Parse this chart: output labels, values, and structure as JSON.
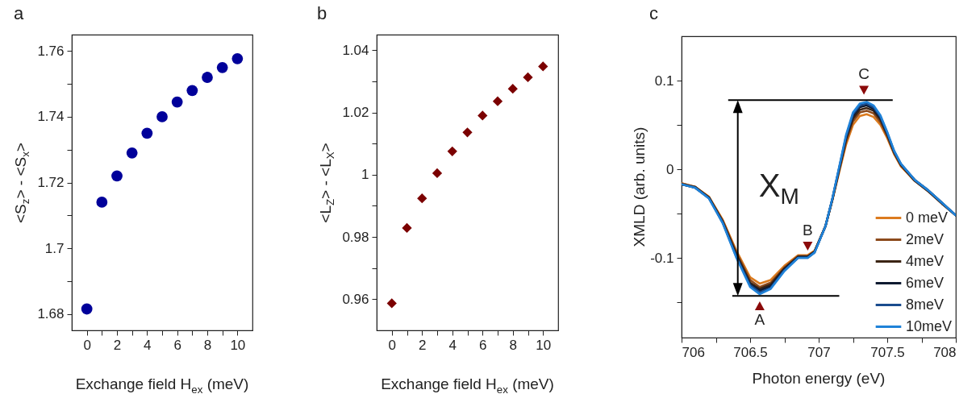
{
  "chart_data": [
    {
      "type": "scatter",
      "title": "a",
      "xlabel": "Exchange field H$_{ex}$ (meV)",
      "ylabel": "<S$_{z}$> - <S$_{x}$>",
      "x": [
        0,
        1,
        2,
        3,
        4,
        5,
        6,
        7,
        8,
        9,
        10
      ],
      "values": [
        1.6815,
        1.714,
        1.722,
        1.729,
        1.735,
        1.74,
        1.7445,
        1.748,
        1.752,
        1.755,
        1.7577
      ],
      "color": "#00009a",
      "marker": "circle",
      "xlim": [
        -1,
        11
      ],
      "ylim": [
        1.675,
        1.765
      ],
      "xticks": [
        0,
        {
          "value": 1,
          "label": null
        },
        2,
        {
          "value": 3,
          "label": null
        },
        4,
        {
          "value": 5,
          "label": null
        },
        6,
        {
          "value": 7,
          "label": null
        },
        8,
        {
          "value": 9,
          "label": null
        },
        10
      ],
      "yticks": [
        1.68,
        {
          "value": 1.69,
          "label": null
        },
        1.7,
        {
          "value": 1.71,
          "label": null
        },
        1.72,
        {
          "value": 1.73,
          "label": null
        },
        1.74,
        {
          "value": 1.75,
          "label": null
        },
        1.76
      ]
    },
    {
      "type": "scatter",
      "title": "b",
      "xlabel": "Exchange field H$_{ex}$ (meV)",
      "ylabel": "<L$_{Z}$> - <L$_{X}$>",
      "x": [
        0,
        1,
        2,
        3,
        4,
        5,
        6,
        7,
        8,
        9,
        10
      ],
      "values": [
        0.9587,
        0.9829,
        0.9924,
        1.0005,
        1.0075,
        1.0136,
        1.019,
        1.0236,
        1.0276,
        1.0313,
        1.0348
      ],
      "color": "#7b0000",
      "marker": "diamond",
      "xlim": [
        -1,
        11
      ],
      "ylim": [
        0.95,
        1.045
      ],
      "xticks": [
        0,
        {
          "value": 1,
          "label": null
        },
        2,
        {
          "value": 3,
          "label": null
        },
        4,
        {
          "value": 5,
          "label": null
        },
        6,
        {
          "value": 7,
          "label": null
        },
        8,
        {
          "value": 9,
          "label": null
        },
        10
      ],
      "yticks": [
        0.96,
        {
          "value": 0.97,
          "label": null
        },
        0.98,
        {
          "value": 0.99,
          "label": null
        },
        1,
        {
          "value": 1.01,
          "label": null
        },
        1.02,
        {
          "value": 1.03,
          "label": null
        },
        1.04
      ]
    },
    {
      "type": "line",
      "title": "c",
      "xlabel": "Photon energy (eV)",
      "ylabel": "XMLD (arb. units)",
      "legend": "bottom right",
      "line_style": "solid",
      "x": [
        706,
        706.1,
        706.2,
        706.3,
        706.4,
        706.5,
        706.57,
        706.65,
        706.75,
        706.85,
        706.92,
        706.97,
        707.05,
        707.1,
        707.15,
        707.2,
        707.25,
        707.3,
        707.35,
        707.4,
        707.45,
        707.5,
        707.55,
        707.6,
        707.7,
        707.8,
        707.9,
        708
      ],
      "series": [
        {
          "name": "0 meV",
          "color": "#dc7b1e",
          "values": [
            -0.016,
            -0.02,
            -0.031,
            -0.057,
            -0.092,
            -0.122,
            -0.129,
            -0.125,
            -0.109,
            -0.097,
            -0.097,
            -0.092,
            -0.064,
            -0.035,
            -0.003,
            0.028,
            0.05,
            0.06,
            0.062,
            0.059,
            0.05,
            0.035,
            0.017,
            0.003,
            -0.013,
            -0.025,
            null,
            null
          ]
        },
        {
          "name": "2meV",
          "color": "#8c4a1c",
          "values": [
            -0.016,
            -0.02,
            -0.032,
            -0.058,
            -0.094,
            -0.125,
            -0.133,
            -0.128,
            -0.111,
            -0.098,
            -0.098,
            -0.093,
            -0.064,
            -0.034,
            -0.001,
            0.031,
            0.054,
            0.064,
            0.066,
            0.063,
            0.053,
            0.037,
            0.018,
            0.004,
            -0.013,
            -0.025,
            -0.039,
            -0.052
          ]
        },
        {
          "name": "4meV",
          "color": "#3b2414",
          "values": [
            -0.017,
            -0.02,
            -0.032,
            -0.059,
            -0.096,
            -0.128,
            -0.135,
            -0.13,
            -0.112,
            -0.099,
            -0.099,
            -0.093,
            -0.064,
            -0.034,
            0.0,
            0.034,
            0.057,
            0.067,
            0.069,
            0.066,
            0.056,
            0.039,
            0.019,
            0.005,
            -0.013,
            -0.025,
            -0.039,
            -0.052
          ]
        },
        {
          "name": "6meV",
          "color": "#0e1a30",
          "values": [
            -0.017,
            -0.021,
            -0.032,
            -0.06,
            -0.098,
            -0.13,
            -0.137,
            -0.132,
            -0.113,
            -0.099,
            -0.099,
            -0.093,
            -0.064,
            -0.034,
            0.001,
            0.036,
            0.06,
            0.07,
            0.072,
            0.068,
            0.058,
            0.04,
            0.02,
            0.005,
            -0.012,
            -0.024,
            -0.038,
            -0.052
          ]
        },
        {
          "name": "8meV",
          "color": "#1a4c8e",
          "values": [
            -0.017,
            -0.021,
            -0.033,
            -0.06,
            -0.099,
            -0.131,
            -0.139,
            -0.134,
            -0.114,
            -0.1,
            -0.1,
            -0.094,
            -0.064,
            -0.033,
            0.002,
            0.037,
            0.062,
            0.072,
            0.074,
            0.07,
            0.059,
            0.041,
            0.02,
            0.006,
            -0.012,
            -0.024,
            -0.038,
            -0.052
          ]
        },
        {
          "name": "10meV",
          "color": "#1f82d8",
          "values": [
            -0.017,
            -0.021,
            -0.033,
            -0.061,
            -0.1,
            -0.133,
            -0.141,
            -0.135,
            -0.115,
            -0.1,
            -0.1,
            -0.094,
            -0.064,
            -0.033,
            0.003,
            0.039,
            0.064,
            0.074,
            0.076,
            0.072,
            0.061,
            0.042,
            0.021,
            0.006,
            -0.012,
            -0.024,
            -0.038,
            -0.052
          ]
        }
      ],
      "xlim": [
        706,
        708
      ],
      "ylim": [
        -0.19,
        0.15
      ],
      "xticks": [
        706,
        {
          "value": 706.25,
          "label": null
        },
        706.5,
        {
          "value": 706.75,
          "label": null
        },
        707,
        {
          "value": 707.25,
          "label": null
        },
        707.5,
        {
          "value": 707.75,
          "label": null
        },
        708
      ],
      "yticks": [
        {
          "value": -0.15,
          "label": null
        },
        -0.1,
        {
          "value": -0.05,
          "label": null
        },
        0,
        {
          "value": 0.05,
          "label": null
        },
        0.1
      ],
      "ref_lines": [
        {
          "axis": "y",
          "value": 0.078,
          "color": "#000000"
        },
        {
          "axis": "y",
          "value": -0.143,
          "color": "#000000"
        }
      ],
      "annotations": [
        "X$_{M}$",
        {
          "text": "A",
          "x": 706.57,
          "y": -0.141
        },
        {
          "text": "B",
          "x": 706.92,
          "y": -0.1
        },
        {
          "text": "C",
          "x": 707.33,
          "y": 0.076
        }
      ]
    }
  ]
}
